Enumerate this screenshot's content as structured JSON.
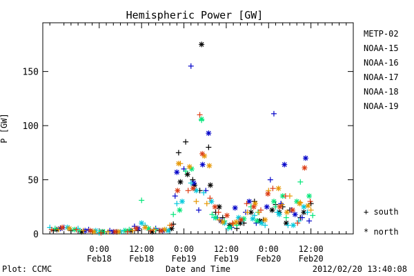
{
  "chart_data": {
    "type": "scatter",
    "title": "Hemispheric Power [GW]",
    "xlabel": "Date and Time",
    "ylabel": "P [GW]",
    "x_unit": "hours",
    "xlim": [
      -16,
      72
    ],
    "ylim": [
      0,
      195
    ],
    "yticks": [
      0,
      50,
      100,
      150
    ],
    "xticks": [
      {
        "x": 0,
        "top": "0:00",
        "bottom": "Feb18"
      },
      {
        "x": 12,
        "top": "12:00",
        "bottom": "Feb18"
      },
      {
        "x": 24,
        "top": "0:00",
        "bottom": "Feb19"
      },
      {
        "x": 36,
        "top": "12:00",
        "bottom": "Feb19"
      },
      {
        "x": 48,
        "top": "0:00",
        "bottom": "Feb20"
      },
      {
        "x": 60,
        "top": "12:00",
        "bottom": "Feb20"
      }
    ],
    "grid": false,
    "legend_position": "right",
    "marker_legend": [
      {
        "symbol": "+",
        "label": "south"
      },
      {
        "symbol": "*",
        "label": "north"
      }
    ],
    "series": [
      {
        "name": "METP-02",
        "color": "#000000",
        "south": [
          [
            -13,
            3
          ],
          [
            -8,
            3
          ],
          [
            -2,
            2
          ],
          [
            5,
            2
          ],
          [
            11,
            3
          ],
          [
            17,
            3
          ],
          [
            21,
            9
          ],
          [
            22.5,
            75
          ],
          [
            24.5,
            85
          ],
          [
            26.5,
            50
          ],
          [
            28.5,
            40
          ],
          [
            31,
            80
          ],
          [
            33,
            20
          ],
          [
            35,
            15
          ],
          [
            39,
            5
          ],
          [
            41,
            10
          ],
          [
            44,
            30
          ],
          [
            46.5,
            13
          ],
          [
            50,
            27
          ],
          [
            52,
            25
          ],
          [
            54,
            22
          ],
          [
            57,
            15
          ],
          [
            60,
            28
          ]
        ],
        "north": [
          [
            -12,
            4
          ],
          [
            -5,
            2
          ],
          [
            1,
            2
          ],
          [
            9,
            3
          ],
          [
            15,
            2
          ],
          [
            20.5,
            5
          ],
          [
            23,
            48
          ],
          [
            25,
            55
          ],
          [
            27,
            45
          ],
          [
            29,
            175
          ],
          [
            31.5,
            45
          ],
          [
            34,
            25
          ],
          [
            37,
            8
          ],
          [
            40,
            10
          ],
          [
            43,
            20
          ],
          [
            45.5,
            12
          ],
          [
            49,
            22
          ],
          [
            51,
            20
          ],
          [
            53,
            10
          ],
          [
            58,
            20
          ]
        ]
      },
      {
        "name": "NOAA-15",
        "color": "#0000c8",
        "south": [
          [
            -10,
            6
          ],
          [
            -3,
            4
          ],
          [
            3,
            3
          ],
          [
            10,
            7
          ],
          [
            16,
            5
          ],
          [
            21.5,
            35
          ],
          [
            24,
            60
          ],
          [
            26,
            155
          ],
          [
            28.2,
            22
          ],
          [
            30.2,
            40
          ],
          [
            33.5,
            15
          ],
          [
            37.5,
            6
          ],
          [
            41.5,
            20
          ],
          [
            44.5,
            10
          ],
          [
            48.5,
            50
          ],
          [
            49.5,
            111
          ],
          [
            51.5,
            28
          ],
          [
            54.5,
            22
          ],
          [
            57.5,
            15
          ],
          [
            59.5,
            12
          ]
        ],
        "north": [
          [
            -11,
            5
          ],
          [
            -4,
            3
          ],
          [
            4,
            2
          ],
          [
            11,
            5
          ],
          [
            18,
            3
          ],
          [
            22,
            57
          ],
          [
            26.8,
            47
          ],
          [
            29.3,
            64
          ],
          [
            31,
            93
          ],
          [
            34.5,
            12
          ],
          [
            38.5,
            24
          ],
          [
            42.5,
            30
          ],
          [
            47.5,
            25
          ],
          [
            52.5,
            64
          ],
          [
            55.5,
            18
          ],
          [
            58.5,
            70
          ]
        ]
      },
      {
        "name": "NOAA-16",
        "color": "#00c8dc",
        "south": [
          [
            -14,
            6
          ],
          [
            -6,
            5
          ],
          [
            0,
            1
          ],
          [
            7,
            3
          ],
          [
            13,
            8
          ],
          [
            19,
            4
          ],
          [
            22,
            28
          ],
          [
            26,
            47
          ],
          [
            29.6,
            38
          ],
          [
            32.5,
            15
          ],
          [
            36.5,
            5
          ],
          [
            40.5,
            12
          ],
          [
            44,
            17
          ],
          [
            47,
            8
          ],
          [
            50.5,
            20
          ],
          [
            53.5,
            8
          ],
          [
            56.5,
            12
          ],
          [
            59,
            20
          ]
        ],
        "north": [
          [
            -9,
            6
          ],
          [
            -1,
            3
          ],
          [
            6,
            2
          ],
          [
            12,
            10
          ],
          [
            19.5,
            3
          ],
          [
            23.5,
            30
          ],
          [
            27.5,
            40
          ],
          [
            31.8,
            30
          ],
          [
            35.5,
            10
          ],
          [
            39.5,
            15
          ],
          [
            43.5,
            14
          ],
          [
            46,
            10
          ],
          [
            51,
            18
          ],
          [
            55,
            8
          ],
          [
            58,
            25
          ]
        ]
      },
      {
        "name": "NOAA-17",
        "color": "#00e678",
        "south": [
          [
            -12.5,
            5
          ],
          [
            -5.5,
            3
          ],
          [
            1.5,
            2
          ],
          [
            8.5,
            4
          ],
          [
            12,
            31
          ],
          [
            16,
            4
          ],
          [
            21,
            18
          ],
          [
            24.5,
            58
          ],
          [
            29,
            105
          ],
          [
            32,
            18
          ],
          [
            35.5,
            12
          ],
          [
            39,
            8
          ],
          [
            43,
            25
          ],
          [
            45,
            20
          ],
          [
            50,
            25
          ],
          [
            53,
            15
          ],
          [
            57,
            48
          ],
          [
            60.5,
            17
          ]
        ],
        "north": [
          [
            -7,
            4
          ],
          [
            0.5,
            2
          ],
          [
            7.5,
            3
          ],
          [
            14,
            5
          ],
          [
            22.8,
            22
          ],
          [
            26.2,
            60
          ],
          [
            29,
            106
          ],
          [
            33,
            15
          ],
          [
            37,
            6
          ],
          [
            41,
            14
          ],
          [
            44.7,
            12
          ],
          [
            49.5,
            30
          ],
          [
            52,
            35
          ],
          [
            56,
            30
          ],
          [
            59.5,
            35
          ]
        ]
      },
      {
        "name": "NOAA-18",
        "color": "#e69600",
        "south": [
          [
            -11.5,
            4
          ],
          [
            -4.5,
            3
          ],
          [
            2.5,
            2
          ],
          [
            9.5,
            3
          ],
          [
            15.5,
            4
          ],
          [
            20,
            8
          ],
          [
            23,
            65
          ],
          [
            27.5,
            30
          ],
          [
            30.5,
            28
          ],
          [
            34,
            13
          ],
          [
            38,
            9
          ],
          [
            42,
            20
          ],
          [
            45.3,
            20
          ],
          [
            48,
            40
          ],
          [
            51.8,
            27
          ],
          [
            54,
            35
          ],
          [
            57,
            29
          ],
          [
            60,
            22
          ]
        ],
        "north": [
          [
            -8.5,
            5
          ],
          [
            -1.5,
            2
          ],
          [
            5.5,
            2
          ],
          [
            13,
            6
          ],
          [
            18.5,
            4
          ],
          [
            22.5,
            65
          ],
          [
            25.6,
            62
          ],
          [
            29.8,
            72
          ],
          [
            31.2,
            63
          ],
          [
            35,
            11
          ],
          [
            38.8,
            11
          ],
          [
            44.2,
            28
          ],
          [
            47,
            13
          ],
          [
            50.8,
            42
          ],
          [
            53.2,
            20
          ],
          [
            56.8,
            28
          ],
          [
            59.2,
            26
          ]
        ]
      },
      {
        "name": "NOAA-19",
        "color": "#dc3c14",
        "south": [
          [
            -13.5,
            4
          ],
          [
            -6.5,
            4
          ],
          [
            0.5,
            1
          ],
          [
            8,
            2
          ],
          [
            14.5,
            3
          ],
          [
            20.5,
            8
          ],
          [
            25.2,
            40
          ],
          [
            28.5,
            110
          ],
          [
            31.4,
            33
          ],
          [
            33.8,
            20
          ],
          [
            37.8,
            10
          ],
          [
            41.8,
            28
          ],
          [
            45.8,
            22
          ],
          [
            49.2,
            42
          ],
          [
            52.8,
            35
          ],
          [
            56.2,
            10
          ],
          [
            59.8,
            30
          ]
        ],
        "north": [
          [
            -10.5,
            6
          ],
          [
            -2.5,
            3
          ],
          [
            4.5,
            2
          ],
          [
            10.5,
            5
          ],
          [
            17.5,
            3
          ],
          [
            22.2,
            40
          ],
          [
            26.6,
            42
          ],
          [
            29.2,
            74
          ],
          [
            32.8,
            25
          ],
          [
            36.2,
            17
          ],
          [
            40.2,
            13
          ],
          [
            43.8,
            25
          ],
          [
            47.8,
            37
          ],
          [
            51.2,
            25
          ],
          [
            54.8,
            22
          ],
          [
            58.2,
            61
          ]
        ]
      }
    ]
  },
  "footer": {
    "left": "Plot: CCMC",
    "right": "2012/02/20 13:40:08"
  }
}
